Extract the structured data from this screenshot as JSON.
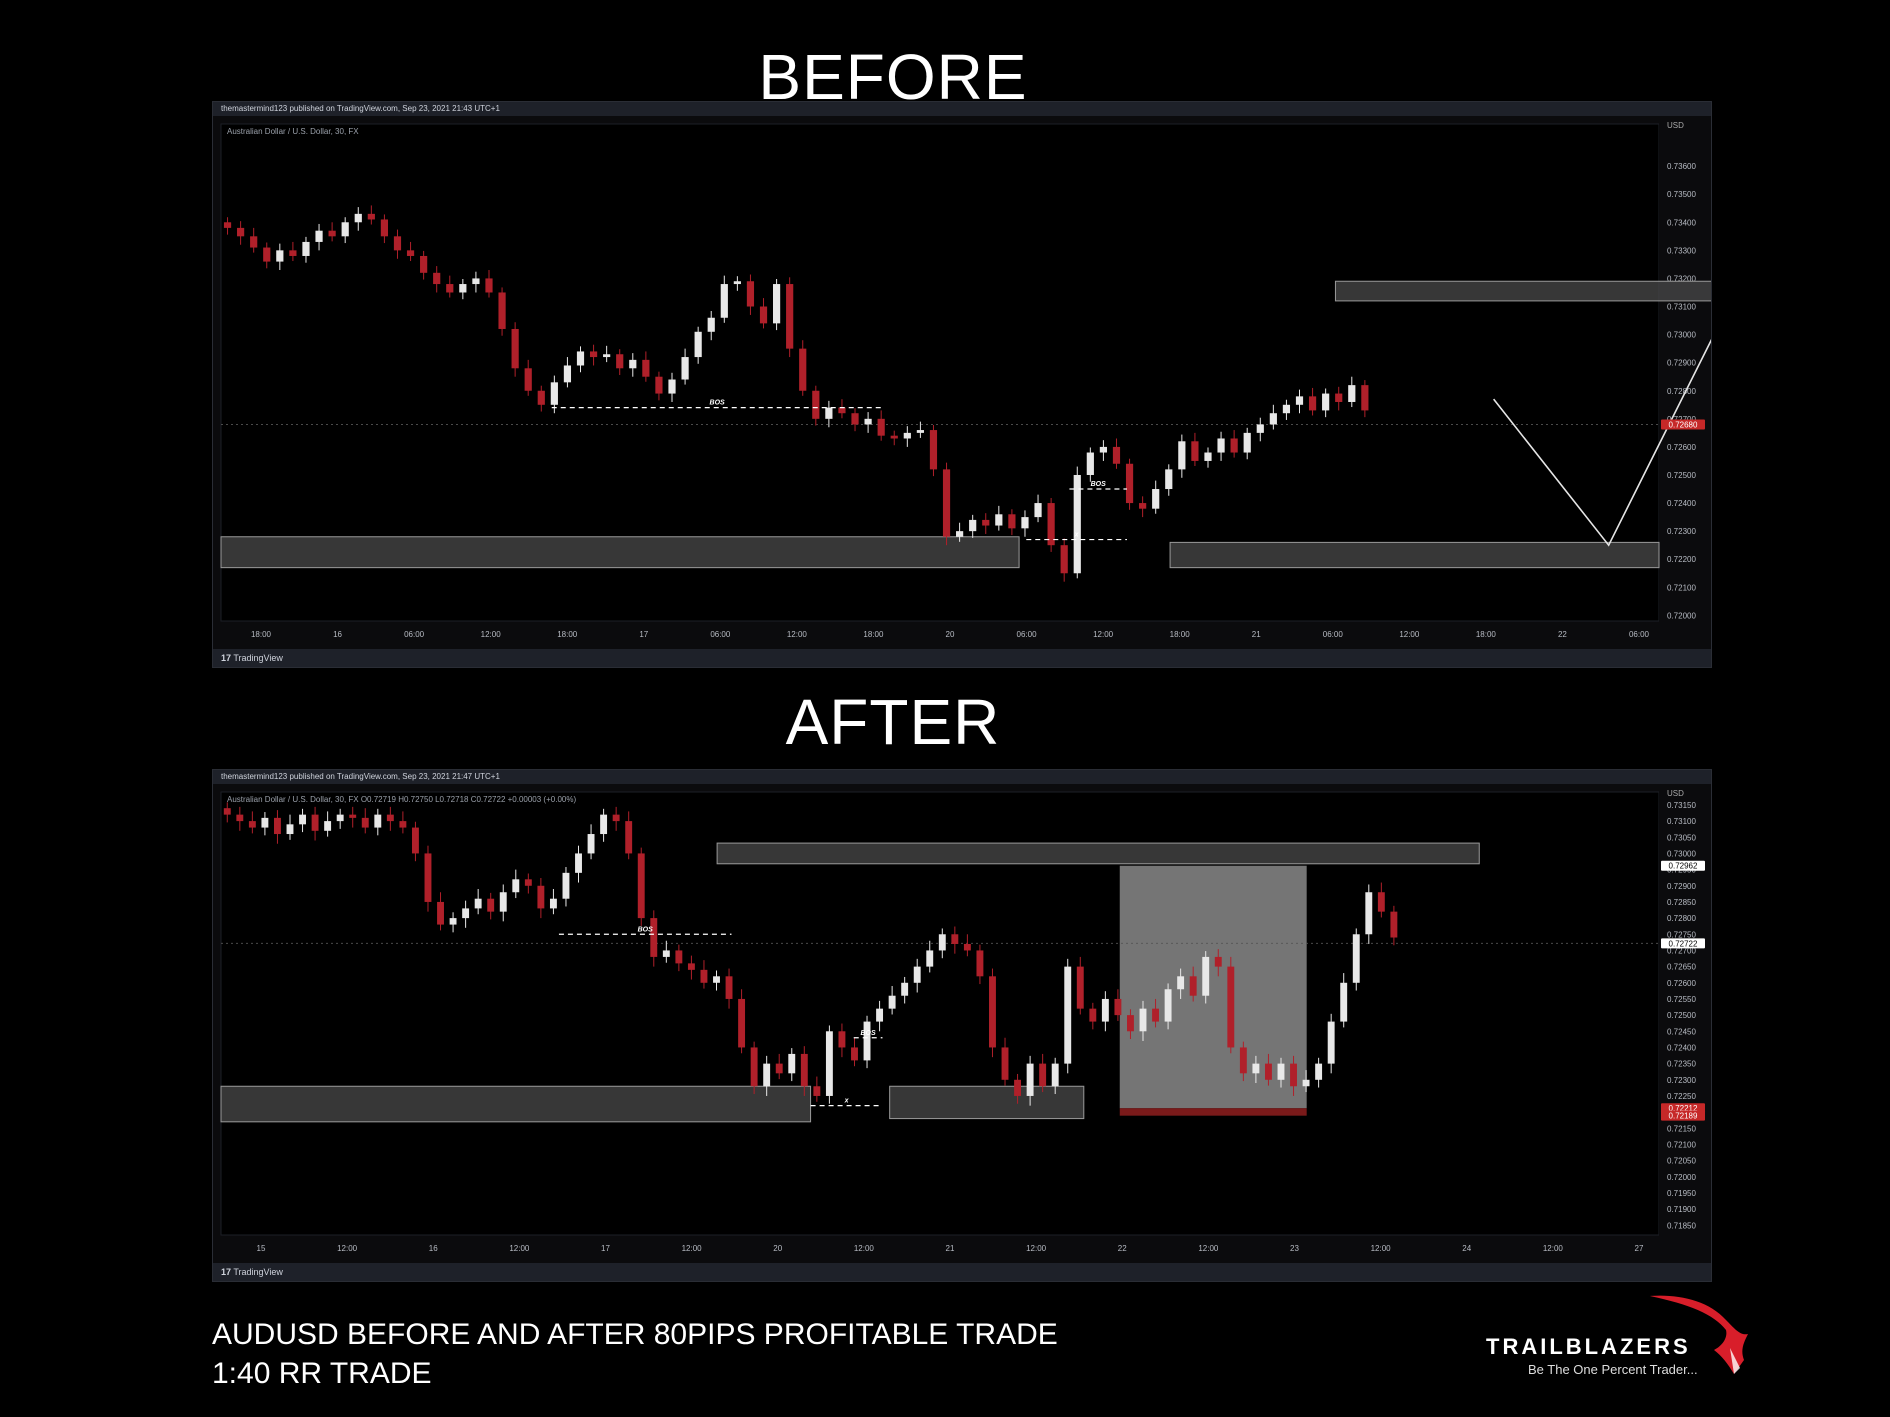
{
  "headings": {
    "before": "BEFORE",
    "after": "AFTER"
  },
  "caption": {
    "line1": "AUDUSD BEFORE AND AFTER 80PIPS PROFITABLE TRADE",
    "line2": "1:40 RR TRADE"
  },
  "logo": {
    "name": "TRAILBLAZERS",
    "tagline": "Be The One Percent Trader..."
  },
  "colors": {
    "up": "#e8e8e8",
    "down": "#b0202a",
    "zone": "#4a4a4a",
    "background": "#000000",
    "panel": "#0b0b0d",
    "price_tag": "#c62828"
  },
  "chart_data": [
    {
      "type": "candlestick",
      "name": "before",
      "publisher_line": "themastermind123 published on TradingView.com, Sep 23, 2021 21:43 UTC+1",
      "symbol_line": "Australian Dollar / U.S. Dollar, 30, FX",
      "footer": "TradingView",
      "currency_label": "USD",
      "y_ticks": [
        "0.73600",
        "0.73500",
        "0.73400",
        "0.73300",
        "0.73200",
        "0.73100",
        "0.73000",
        "0.72900",
        "0.72800",
        "0.72700",
        "0.72600",
        "0.72500",
        "0.72400",
        "0.72300",
        "0.72200",
        "0.72100",
        "0.72000"
      ],
      "ylim": [
        0.7198,
        0.7375
      ],
      "x_ticks": [
        "18:00",
        "16",
        "06:00",
        "12:00",
        "18:00",
        "17",
        "06:00",
        "12:00",
        "18:00",
        "20",
        "06:00",
        "12:00",
        "18:00",
        "21",
        "06:00",
        "12:00",
        "18:00",
        "22",
        "06:00"
      ],
      "current_price": "0.72680",
      "closes": [
        0.7338,
        0.7335,
        0.7331,
        0.7326,
        0.733,
        0.7328,
        0.7333,
        0.7337,
        0.7335,
        0.734,
        0.7343,
        0.7341,
        0.7335,
        0.733,
        0.7328,
        0.7322,
        0.7318,
        0.7315,
        0.7318,
        0.732,
        0.7315,
        0.7302,
        0.7288,
        0.728,
        0.7275,
        0.7283,
        0.7289,
        0.7294,
        0.7292,
        0.7293,
        0.7288,
        0.7291,
        0.7285,
        0.7279,
        0.7284,
        0.7292,
        0.7301,
        0.7306,
        0.7318,
        0.7319,
        0.731,
        0.7304,
        0.7318,
        0.7295,
        0.728,
        0.727,
        0.7274,
        0.7272,
        0.7268,
        0.727,
        0.7264,
        0.7263,
        0.7265,
        0.7266,
        0.7252,
        0.7228,
        0.723,
        0.7234,
        0.7232,
        0.7236,
        0.7231,
        0.7235,
        0.724,
        0.7225,
        0.7215,
        0.725,
        0.7258,
        0.726,
        0.7254,
        0.724,
        0.7238,
        0.7245,
        0.7252,
        0.7262,
        0.7255,
        0.7258,
        0.7263,
        0.7258,
        0.7265,
        0.7268,
        0.7272,
        0.7275,
        0.7278,
        0.7273,
        0.7279,
        0.7276,
        0.7282,
        0.7273
      ],
      "zones": [
        {
          "label": "supply",
          "x0": 77.5,
          "x1": 200,
          "top": 0.7319,
          "bottom": 0.7312
        },
        {
          "label": "demand 1",
          "x0": 0,
          "x1": 55.5,
          "top": 0.7228,
          "bottom": 0.7217
        },
        {
          "label": "demand 2",
          "x0": 66,
          "x1": 100,
          "top": 0.7226,
          "bottom": 0.7217
        }
      ],
      "bos_lines": [
        {
          "label": "BOS",
          "x0": 23,
          "x1": 46,
          "y": 0.7274
        },
        {
          "label": "BOS",
          "x0": 59,
          "x1": 63,
          "y": 0.7245
        },
        {
          "label": "x",
          "x0": 56,
          "x1": 63,
          "y": 0.7227
        }
      ],
      "projection": [
        [
          88.5,
          0.7277
        ],
        [
          96.5,
          0.7225
        ],
        [
          105,
          0.7312
        ]
      ]
    },
    {
      "type": "candlestick",
      "name": "after",
      "publisher_line": "themastermind123 published on TradingView.com, Sep 23, 2021 21:47 UTC+1",
      "symbol_line": "Australian Dollar / U.S. Dollar, 30, FX  O0.72719  H0.72750  L0.72718  C0.72722  +0.00003 (+0.00%)",
      "footer": "TradingView",
      "currency_label": "USD",
      "y_ticks": [
        "0.73150",
        "0.73100",
        "0.73050",
        "0.73000",
        "0.72950",
        "0.72900",
        "0.72850",
        "0.72800",
        "0.72750",
        "0.72700",
        "0.72650",
        "0.72600",
        "0.72550",
        "0.72500",
        "0.72450",
        "0.72400",
        "0.72350",
        "0.72300",
        "0.72250",
        "0.72200",
        "0.72150",
        "0.72100",
        "0.72050",
        "0.72000",
        "0.71950",
        "0.71900",
        "0.71850"
      ],
      "ylim": [
        0.7182,
        0.7319
      ],
      "x_ticks": [
        "15",
        "12:00",
        "16",
        "12:00",
        "17",
        "12:00",
        "20",
        "12:00",
        "21",
        "12:00",
        "22",
        "12:00",
        "23",
        "12:00",
        "24",
        "12:00",
        "27"
      ],
      "price_tags": [
        "0.72962",
        "0.72722",
        "0.72212",
        "0.72189"
      ],
      "closes": [
        0.7312,
        0.731,
        0.7308,
        0.7311,
        0.7306,
        0.7309,
        0.7312,
        0.7307,
        0.731,
        0.7312,
        0.7311,
        0.7308,
        0.7312,
        0.731,
        0.7308,
        0.73,
        0.7285,
        0.7278,
        0.728,
        0.7283,
        0.7286,
        0.7282,
        0.7288,
        0.7292,
        0.729,
        0.7283,
        0.7286,
        0.7294,
        0.73,
        0.7306,
        0.7312,
        0.731,
        0.73,
        0.728,
        0.7268,
        0.727,
        0.7266,
        0.7264,
        0.726,
        0.7262,
        0.7255,
        0.724,
        0.7228,
        0.7235,
        0.7232,
        0.7238,
        0.7228,
        0.7225,
        0.7245,
        0.724,
        0.7236,
        0.7248,
        0.7252,
        0.7256,
        0.726,
        0.7265,
        0.727,
        0.7275,
        0.7272,
        0.727,
        0.7262,
        0.724,
        0.723,
        0.7225,
        0.7235,
        0.7228,
        0.7235,
        0.7265,
        0.7252,
        0.7248,
        0.7255,
        0.725,
        0.7245,
        0.7252,
        0.7248,
        0.7258,
        0.7262,
        0.7256,
        0.7268,
        0.7265,
        0.724,
        0.7232,
        0.7235,
        0.723,
        0.7235,
        0.7228,
        0.723,
        0.7235,
        0.7248,
        0.726,
        0.7275,
        0.7288,
        0.7282,
        0.7274
      ],
      "zones": [
        {
          "label": "supply",
          "x0": 34.5,
          "x1": 87.5,
          "top": 0.73032,
          "bottom": 0.72968
        },
        {
          "label": "demand 1",
          "x0": 0,
          "x1": 41,
          "top": 0.7228,
          "bottom": 0.7217
        },
        {
          "label": "demand 2",
          "x0": 46.5,
          "x1": 60,
          "top": 0.7228,
          "bottom": 0.7218
        }
      ],
      "trade_box": {
        "x0": 62.5,
        "x1": 75.5,
        "entry": 0.72212,
        "stop": 0.72189,
        "target": 0.72962
      },
      "bos_lines": [
        {
          "label": "BOS",
          "x0": 23.5,
          "x1": 35.5,
          "y": 0.7275
        },
        {
          "label": "BOS",
          "x0": 44,
          "x1": 46,
          "y": 0.7243
        },
        {
          "label": "x",
          "x0": 41,
          "x1": 46,
          "y": 0.7222
        }
      ]
    }
  ]
}
